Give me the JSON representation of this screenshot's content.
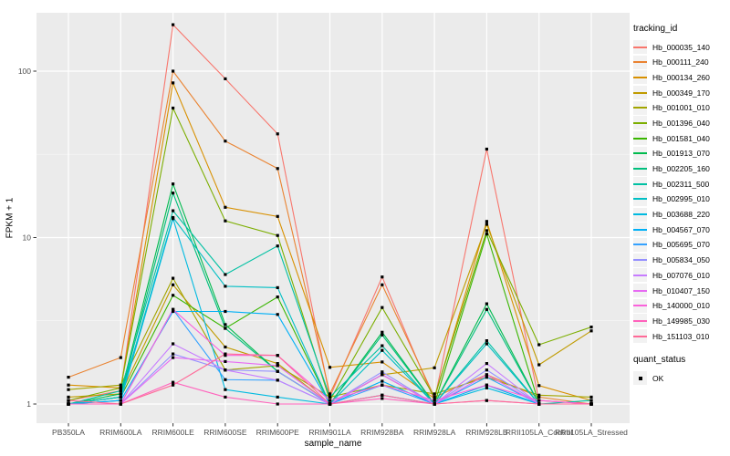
{
  "figure": {
    "xlabel": "sample_name",
    "ylabel": "FPKM + 1",
    "tracking_legend_title": "tracking_id",
    "quant_legend_title": "quant_status",
    "quant_legend_label": "OK"
  },
  "chart_data": {
    "type": "line",
    "title": "",
    "xlabel": "sample_name",
    "ylabel": "FPKM + 1",
    "x_axis": {
      "categories": [
        "PB350LA",
        "RRIM600LA",
        "RRIM600LE",
        "RRIM600SE",
        "RRIM600PE",
        "RRIM901LA",
        "RRIM928BA",
        "RRIM928LA",
        "RRIM928LB",
        "RRII105LA_Control",
        "RRII105LA_Stressed"
      ]
    },
    "y_axis": {
      "scale": "log10",
      "ticks": [
        1,
        10,
        100
      ],
      "tick_labels": [
        "1",
        "10",
        "100"
      ],
      "minor_gridlines": [
        3.1623,
        31.623
      ],
      "range_approx": [
        0.77,
        220
      ]
    },
    "legend_position": "right",
    "grid": true,
    "colors": {
      "panel_background": "#EBEBEB",
      "gridline": "#FFFFFF",
      "tick_text": "#4D4D4D",
      "tick_mark": "#333333",
      "point": "#000000",
      "legend_key_background": "#F2F2F2"
    },
    "quant_status": {
      "title": "quant_status",
      "items": [
        {
          "label": "OK",
          "marker": "black-point"
        }
      ]
    },
    "series": [
      {
        "name": "Hb_000035_140",
        "color": "#F8766D",
        "values": [
          1.05,
          1.2,
          190,
          90,
          42,
          1.1,
          5.8,
          1.05,
          34,
          1.05,
          1.0
        ]
      },
      {
        "name": "Hb_000111_240",
        "color": "#EA8331",
        "values": [
          1.45,
          1.9,
          100,
          38,
          26,
          1.15,
          5.2,
          1.1,
          1.5,
          1.1,
          1.0
        ]
      },
      {
        "name": "Hb_000134_260",
        "color": "#D89000",
        "values": [
          1.3,
          1.25,
          85,
          15.2,
          13.4,
          1.66,
          1.79,
          1.08,
          12.5,
          1.29,
          1.05
        ]
      },
      {
        "name": "Hb_000349_170",
        "color": "#C09B00",
        "values": [
          1.1,
          1.15,
          5.2,
          2.2,
          1.75,
          1.0,
          1.5,
          1.65,
          12.0,
          1.72,
          2.75
        ]
      },
      {
        "name": "Hb_001001_010",
        "color": "#A3A500",
        "values": [
          1.22,
          1.3,
          5.7,
          1.6,
          1.7,
          1.1,
          1.3,
          1.15,
          1.45,
          1.13,
          1.1
        ]
      },
      {
        "name": "Hb_001396_040",
        "color": "#7CAE00",
        "values": [
          1.05,
          1.25,
          60,
          12.6,
          10.3,
          1.05,
          3.8,
          1.1,
          11.0,
          2.27,
          2.9
        ]
      },
      {
        "name": "Hb_001581_040",
        "color": "#39B600",
        "values": [
          1.0,
          1.1,
          4.5,
          2.85,
          4.4,
          1.0,
          1.5,
          1.0,
          10.5,
          1.0,
          1.0
        ]
      },
      {
        "name": "Hb_001913_070",
        "color": "#00BB4E",
        "values": [
          1.0,
          1.15,
          21,
          3.0,
          1.57,
          1.0,
          2.7,
          1.0,
          4.0,
          1.0,
          1.0
        ]
      },
      {
        "name": "Hb_002205_160",
        "color": "#00BF7D",
        "values": [
          1.0,
          1.1,
          18.5,
          2.85,
          1.57,
          1.0,
          2.6,
          1.0,
          3.7,
          1.0,
          1.0
        ]
      },
      {
        "name": "Hb_002311_500",
        "color": "#00C1A3",
        "values": [
          1.0,
          1.2,
          14.5,
          6.0,
          8.9,
          1.1,
          2.24,
          1.0,
          2.4,
          1.0,
          1.05
        ]
      },
      {
        "name": "Hb_002995_010",
        "color": "#00BFC4",
        "values": [
          1.0,
          1.1,
          13.2,
          5.1,
          5.0,
          1.0,
          2.1,
          1.0,
          2.3,
          1.0,
          1.0
        ]
      },
      {
        "name": "Hb_003688_220",
        "color": "#00BAE0",
        "values": [
          1.0,
          1.05,
          13.0,
          1.22,
          1.1,
          1.0,
          1.13,
          1.0,
          1.25,
          1.0,
          1.0
        ]
      },
      {
        "name": "Hb_004567_070",
        "color": "#00B0F6",
        "values": [
          1.0,
          1.05,
          3.6,
          3.6,
          3.45,
          1.0,
          1.37,
          1.0,
          1.3,
          1.0,
          1.0
        ]
      },
      {
        "name": "Hb_005695_070",
        "color": "#35A2FF",
        "values": [
          1.0,
          1.0,
          3.7,
          1.4,
          1.39,
          1.0,
          1.3,
          1.0,
          1.45,
          1.0,
          1.0
        ]
      },
      {
        "name": "Hb_005834_050",
        "color": "#9590FF",
        "values": [
          1.0,
          1.0,
          2.0,
          1.6,
          1.57,
          1.0,
          1.56,
          1.0,
          1.6,
          1.0,
          1.0
        ]
      },
      {
        "name": "Hb_007076_010",
        "color": "#C77CFF",
        "values": [
          1.0,
          1.0,
          2.3,
          1.6,
          1.39,
          1.0,
          1.5,
          1.0,
          1.75,
          1.0,
          1.0
        ]
      },
      {
        "name": "Hb_010407_150",
        "color": "#E76BF3",
        "values": [
          1.0,
          1.0,
          1.9,
          1.8,
          1.7,
          1.0,
          1.5,
          1.0,
          1.5,
          1.0,
          1.0
        ]
      },
      {
        "name": "Hb_140000_010",
        "color": "#FA62DB",
        "values": [
          1.0,
          1.0,
          3.7,
          1.96,
          1.96,
          1.05,
          1.3,
          1.05,
          1.3,
          1.05,
          1.0
        ]
      },
      {
        "name": "Hb_149985_030",
        "color": "#FF62BC",
        "values": [
          1.0,
          1.0,
          1.35,
          1.1,
          1.0,
          1.0,
          1.08,
          1.0,
          1.05,
          1.0,
          1.0
        ]
      },
      {
        "name": "Hb_151103_010",
        "color": "#FF6A98",
        "values": [
          1.05,
          1.0,
          1.3,
          2.0,
          1.96,
          1.0,
          1.13,
          1.0,
          1.05,
          1.0,
          1.0
        ]
      }
    ]
  }
}
